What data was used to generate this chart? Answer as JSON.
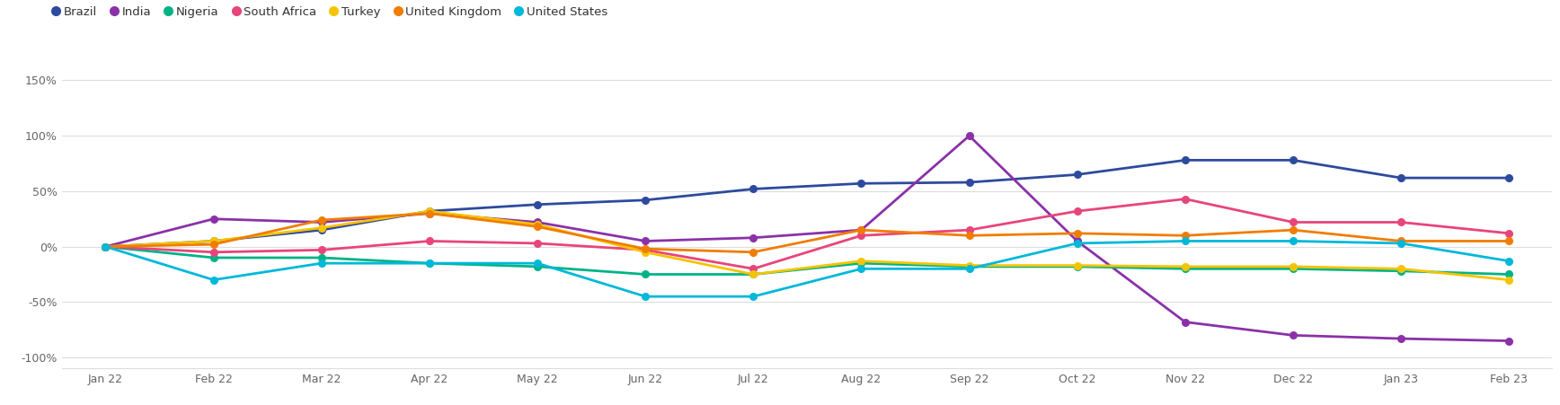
{
  "x_labels": [
    "Jan 22",
    "Feb 22",
    "Mar 22",
    "Apr 22",
    "May 22",
    "Jun 22",
    "Jul 22",
    "Aug 22",
    "Sep 22",
    "Oct 22",
    "Nov 22",
    "Dec 22",
    "Jan 23",
    "Feb 23"
  ],
  "series": {
    "Brazil": [
      0,
      5,
      15,
      32,
      38,
      42,
      52,
      57,
      58,
      65,
      78,
      78,
      62,
      62
    ],
    "India": [
      0,
      25,
      22,
      30,
      22,
      5,
      8,
      15,
      100,
      5,
      -68,
      -80,
      -83,
      -85
    ],
    "Nigeria": [
      0,
      -10,
      -10,
      -15,
      -18,
      -25,
      -25,
      -15,
      -18,
      -18,
      -20,
      -20,
      -22,
      -25
    ],
    "South Africa": [
      0,
      -5,
      -3,
      5,
      3,
      -3,
      -20,
      10,
      15,
      32,
      43,
      22,
      22,
      12
    ],
    "Turkey": [
      0,
      5,
      17,
      32,
      20,
      -5,
      -25,
      -13,
      -17,
      -17,
      -18,
      -18,
      -20,
      -30
    ],
    "United Kingdom": [
      0,
      2,
      24,
      30,
      18,
      -2,
      -5,
      15,
      10,
      12,
      10,
      15,
      5,
      5
    ],
    "United States": [
      0,
      -30,
      -15,
      -15,
      -15,
      -45,
      -45,
      -20,
      -20,
      3,
      5,
      5,
      3,
      -13
    ]
  },
  "colors": {
    "Brazil": "#2e4a9e",
    "India": "#8b31a8",
    "Nigeria": "#00b386",
    "South Africa": "#e8457a",
    "Turkey": "#f5c400",
    "United Kingdom": "#f07d00",
    "United States": "#00b8d9"
  },
  "ylim": [
    -110,
    175
  ],
  "yticks": [
    -100,
    -50,
    0,
    50,
    100,
    150
  ],
  "ytick_labels": [
    "-100%",
    "-50%",
    "0%",
    "50%",
    "100%",
    "150%"
  ],
  "background_color": "#ffffff",
  "grid_color": "#dddddd",
  "marker_size": 5.5,
  "line_width": 2.0,
  "legend_fontsize": 9.5,
  "tick_fontsize": 9
}
